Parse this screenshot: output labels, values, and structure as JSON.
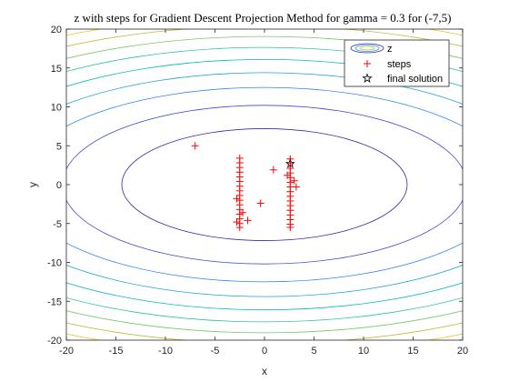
{
  "chart_data": {
    "type": "contour",
    "title": "z with steps for Gradient Descent Projection Method for gamma = 0.3 for (-7,5)",
    "xlabel": "x",
    "ylabel": "y",
    "xlim": [
      -20,
      20
    ],
    "ylim": [
      -20,
      20
    ],
    "xticks": [
      -20,
      -15,
      -10,
      -5,
      0,
      5,
      10,
      15,
      20
    ],
    "yticks": [
      -20,
      -15,
      -10,
      -5,
      0,
      5,
      10,
      15,
      20
    ],
    "grid": false,
    "legend": {
      "placement": "top-right",
      "entries": [
        "z",
        "steps",
        "final solution"
      ]
    },
    "series": [
      {
        "name": "z",
        "kind": "contour",
        "levels": [
          {
            "a": 14.4,
            "b": 7.2,
            "color": "#3e26a8"
          },
          {
            "a": 20.4,
            "b": 10.2,
            "color": "#4246d4"
          },
          {
            "a": 25.0,
            "b": 12.5,
            "color": "#2e84f6"
          },
          {
            "a": 28.8,
            "b": 14.4,
            "color": "#1aa3df"
          },
          {
            "a": 32.2,
            "b": 16.1,
            "color": "#08b7c2"
          },
          {
            "a": 35.3,
            "b": 17.65,
            "color": "#2bc39a"
          },
          {
            "a": 38.1,
            "b": 19.05,
            "color": "#74c765"
          },
          {
            "a": 40.8,
            "b": 20.4,
            "color": "#c0bd3a"
          },
          {
            "a": 43.3,
            "b": 21.65,
            "color": "#f3c52d"
          }
        ]
      },
      {
        "name": "steps",
        "kind": "scatter",
        "marker": "+",
        "color": "#ff0000",
        "points": [
          [
            -7,
            5
          ],
          [
            -2.5,
            3.4
          ],
          [
            -2.5,
            2.8
          ],
          [
            -2.5,
            2.2
          ],
          [
            -2.5,
            1.6
          ],
          [
            -2.5,
            1.0
          ],
          [
            -2.5,
            0.4
          ],
          [
            -2.5,
            -0.2
          ],
          [
            -2.5,
            -0.8
          ],
          [
            -2.5,
            -1.4
          ],
          [
            -2.5,
            -2.0
          ],
          [
            -2.5,
            -2.6
          ],
          [
            -2.5,
            -3.2
          ],
          [
            -2.5,
            -3.8
          ],
          [
            -2.5,
            -4.4
          ],
          [
            -2.5,
            -5.0
          ],
          [
            -2.5,
            -5.5
          ],
          [
            -2.8,
            -1.8
          ],
          [
            -2.8,
            -4.8
          ],
          [
            -2.2,
            -3.6
          ],
          [
            -1.7,
            -4.6
          ],
          [
            -0.4,
            -2.4
          ],
          [
            0.9,
            1.9
          ],
          [
            2.6,
            3.3
          ],
          [
            2.6,
            2.7
          ],
          [
            2.6,
            2.1
          ],
          [
            2.6,
            1.5
          ],
          [
            2.6,
            0.9
          ],
          [
            2.6,
            0.3
          ],
          [
            2.6,
            -0.3
          ],
          [
            2.6,
            -0.9
          ],
          [
            2.6,
            -1.5
          ],
          [
            2.6,
            -2.1
          ],
          [
            2.6,
            -2.7
          ],
          [
            2.6,
            -3.3
          ],
          [
            2.6,
            -3.9
          ],
          [
            2.6,
            -4.5
          ],
          [
            2.6,
            -5.1
          ],
          [
            2.6,
            -5.5
          ],
          [
            3.0,
            0.5
          ],
          [
            3.2,
            -0.3
          ],
          [
            2.3,
            1.2
          ]
        ]
      },
      {
        "name": "final solution",
        "kind": "scatter",
        "marker": "star",
        "color": "#000000",
        "points": [
          [
            2.6,
            2.7
          ]
        ]
      }
    ]
  }
}
